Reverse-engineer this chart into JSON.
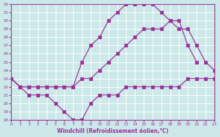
{
  "xlabel": "Windchill (Refroidissement éolien,°C)",
  "bg_color": "#cce8e8",
  "line_color": "#993399",
  "grid_color": "#ffffff",
  "xmin": 0,
  "xmax": 23,
  "ymin": 18,
  "ymax": 32,
  "line1_x": [
    0,
    1,
    2,
    3,
    4,
    5,
    6,
    7,
    8,
    9,
    10,
    11,
    12,
    13,
    14,
    15,
    16,
    17,
    18,
    19,
    20,
    21
  ],
  "line1_y": [
    23,
    22,
    22,
    22,
    22,
    22,
    22,
    22,
    25,
    27,
    28,
    30,
    31,
    32,
    32,
    32,
    32,
    31,
    30,
    30,
    27,
    25
  ],
  "line2_x": [
    0,
    1,
    2,
    3,
    4,
    5,
    6,
    7,
    8,
    9,
    10,
    11,
    12,
    13,
    14,
    15,
    16,
    17,
    18,
    19,
    20,
    21,
    22,
    23
  ],
  "line2_y": [
    23,
    22,
    22,
    22,
    22,
    22,
    22,
    22,
    23,
    23,
    24,
    25,
    26,
    27,
    28,
    29,
    29,
    29,
    30,
    29,
    29,
    27,
    25,
    24
  ],
  "line3_x": [
    0,
    1,
    2,
    3,
    4,
    5,
    6,
    7,
    8,
    9,
    10,
    11,
    12,
    13,
    14,
    15,
    16,
    17,
    18,
    19,
    20,
    21,
    22,
    23
  ],
  "line3_y": [
    23,
    22,
    21,
    21,
    21,
    20,
    19,
    18,
    18,
    20,
    21,
    21,
    21,
    22,
    22,
    22,
    22,
    22,
    22,
    22,
    23,
    23,
    23,
    23
  ]
}
